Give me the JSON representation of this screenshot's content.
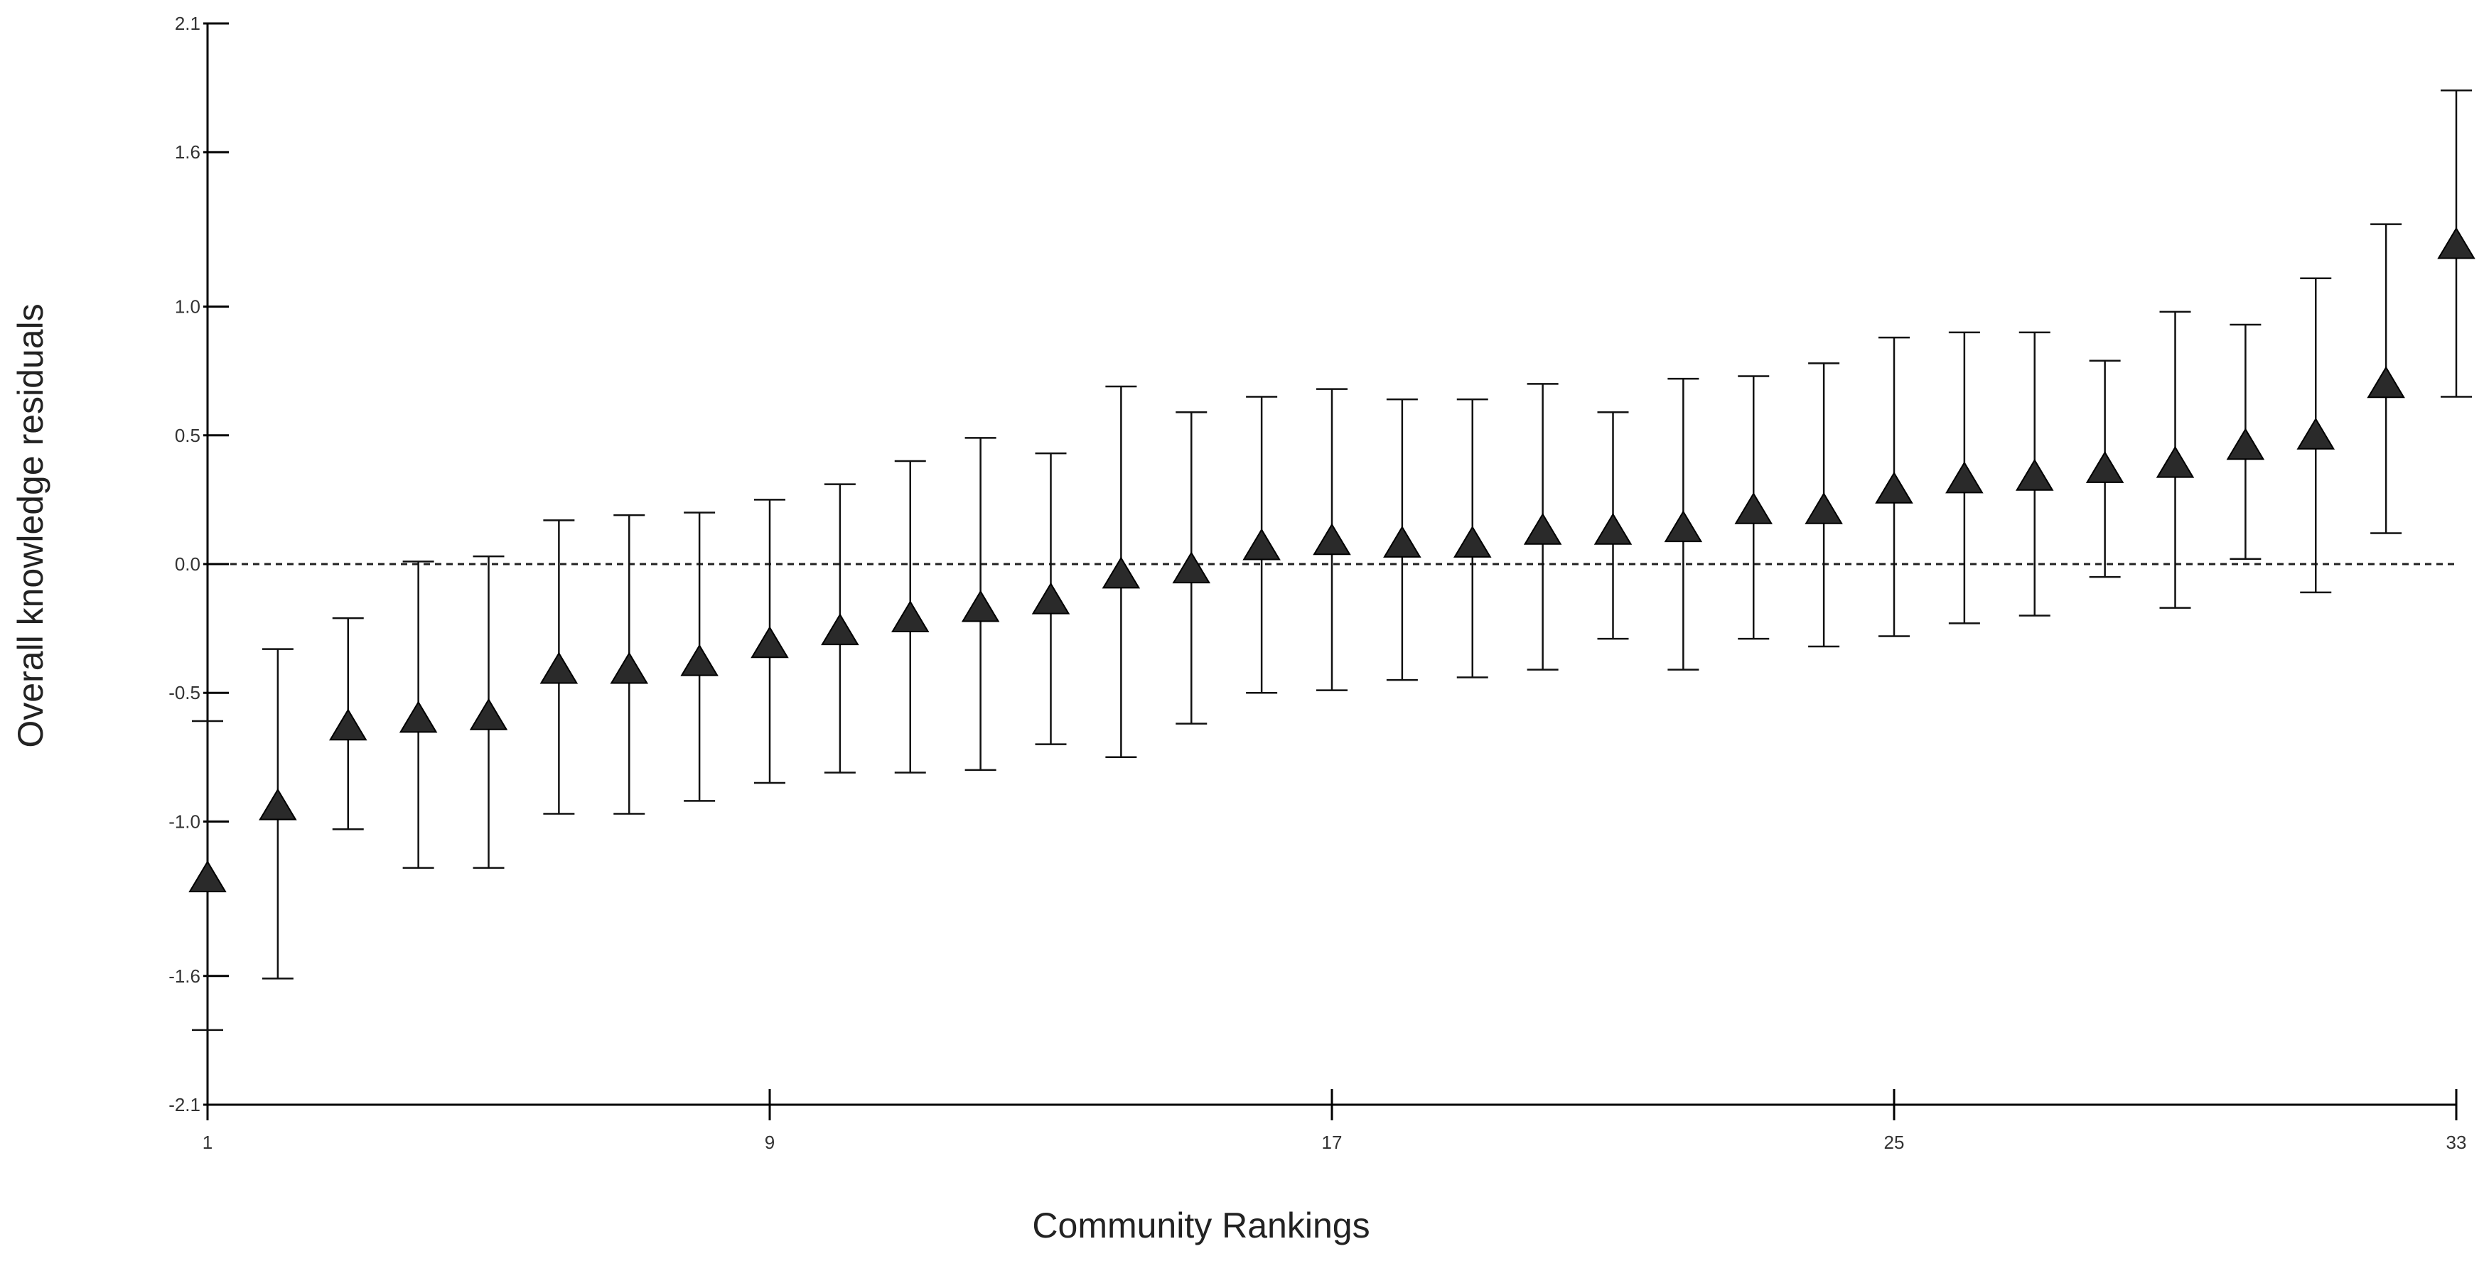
{
  "chart_data": {
    "type": "scatter",
    "xlabel": "Community Rankings",
    "ylabel": "Overall knowledge residuals",
    "xlim": [
      1,
      33
    ],
    "ylim": [
      -2.1,
      2.1
    ],
    "x_ticks": [
      "1",
      "9",
      "17",
      "25",
      "33"
    ],
    "y_ticks": [
      "2.1",
      "1.6",
      "1.0",
      "0.5",
      "0.0",
      "-0.5",
      "-1.0",
      "-1.6",
      "-2.1"
    ],
    "reference_line": 0.0,
    "reference_line_style": "dashed",
    "grid": false,
    "legend": "none",
    "marker": "triangle",
    "series": [
      {
        "x": [
          1,
          2,
          3,
          4,
          5,
          6,
          7,
          8,
          9,
          10,
          11,
          12,
          13,
          14,
          15,
          16,
          17,
          18,
          19,
          20,
          21,
          22,
          23,
          24,
          25,
          26,
          27,
          28,
          29,
          30,
          31,
          32,
          33
        ],
        "y": [
          -1.22,
          -0.94,
          -0.63,
          -0.6,
          -0.59,
          -0.41,
          -0.41,
          -0.38,
          -0.31,
          -0.26,
          -0.21,
          -0.17,
          -0.14,
          -0.04,
          -0.02,
          0.07,
          0.09,
          0.08,
          0.08,
          0.13,
          0.13,
          0.14,
          0.21,
          0.21,
          0.29,
          0.33,
          0.34,
          0.37,
          0.39,
          0.46,
          0.5,
          0.7,
          1.24
        ],
        "lower": [
          -1.81,
          -1.61,
          -1.03,
          -1.18,
          -1.18,
          -0.97,
          -0.97,
          -0.92,
          -0.85,
          -0.81,
          -0.81,
          -0.8,
          -0.7,
          -0.75,
          -0.62,
          -0.5,
          -0.49,
          -0.45,
          -0.44,
          -0.41,
          -0.29,
          -0.41,
          -0.29,
          -0.32,
          -0.28,
          -0.23,
          -0.2,
          -0.05,
          -0.17,
          0.02,
          -0.11,
          0.12,
          0.65
        ],
        "upper": [
          -0.61,
          -0.33,
          -0.21,
          0.01,
          0.03,
          0.17,
          0.19,
          0.2,
          0.25,
          0.31,
          0.4,
          0.49,
          0.43,
          0.69,
          0.59,
          0.65,
          0.68,
          0.64,
          0.64,
          0.7,
          0.59,
          0.72,
          0.73,
          0.78,
          0.88,
          0.9,
          0.9,
          0.79,
          0.98,
          0.93,
          1.11,
          1.32,
          1.84
        ]
      }
    ]
  }
}
